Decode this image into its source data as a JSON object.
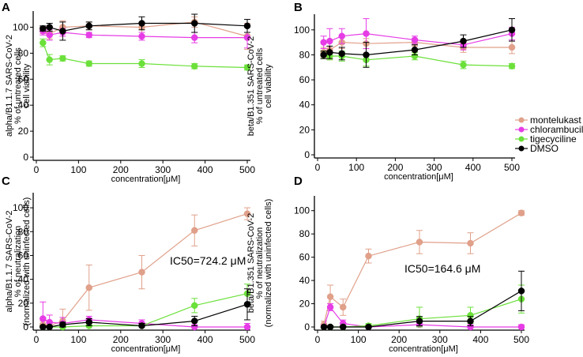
{
  "colors": {
    "montelukast": "#e0a08a",
    "chlorambucil": "#e63ce6",
    "tigecyciline": "#6be03a",
    "DMSO": "#000000"
  },
  "legend": {
    "placement": "right-middle",
    "entries": [
      "montelukast",
      "chlorambucil",
      "tigecyciline",
      "DMSO"
    ]
  },
  "chart_data": [
    {
      "panel": "A",
      "type": "line",
      "title": "",
      "xlabel": "concentration[μM]",
      "ylabel_lines": [
        "alpha/B1.1.7 SARS-CoV-2",
        "% of untreated cells",
        "cell viability"
      ],
      "xlim": [
        0,
        500
      ],
      "ylim": [
        0,
        110
      ],
      "xticks": [
        0,
        100,
        200,
        300,
        400,
        500
      ],
      "yticks": [
        0,
        20,
        40,
        60,
        80,
        100
      ],
      "annotation": "",
      "series": [
        {
          "name": "montelukast",
          "x": [
            15.6,
            31.25,
            62.5,
            125,
            250,
            375,
            500
          ],
          "y": [
            98,
            95,
            100,
            101,
            100,
            104,
            93
          ],
          "err": [
            3,
            4,
            5,
            3,
            4,
            4,
            10
          ]
        },
        {
          "name": "chlorambucil",
          "x": [
            15.6,
            31.25,
            62.5,
            125,
            250,
            375,
            500
          ],
          "y": [
            97,
            94,
            96,
            94,
            93,
            92,
            92
          ],
          "err": [
            3,
            4,
            3,
            2,
            3,
            4,
            8
          ]
        },
        {
          "name": "tigecyciline",
          "x": [
            15.6,
            31.25,
            62.5,
            125,
            250,
            375,
            500
          ],
          "y": [
            88,
            75,
            76,
            72,
            72,
            70,
            69
          ],
          "err": [
            3,
            4,
            2,
            2,
            3,
            2,
            2
          ]
        },
        {
          "name": "DMSO",
          "x": [
            15.6,
            31.25,
            62.5,
            125,
            250,
            375,
            500
          ],
          "y": [
            99,
            100,
            97,
            101,
            103,
            103,
            101
          ],
          "err": [
            2,
            3,
            7,
            3,
            5,
            7,
            5
          ]
        }
      ]
    },
    {
      "panel": "B",
      "type": "line",
      "title": "",
      "xlabel": "concentration[μM]",
      "ylabel_lines": [
        "beta/B1.351 SARS-CoV-2",
        "% of untreated cells",
        "cell viability"
      ],
      "xlim": [
        0,
        500
      ],
      "ylim": [
        0,
        110
      ],
      "xticks": [
        0,
        100,
        200,
        300,
        400,
        500
      ],
      "yticks": [
        0,
        20,
        40,
        60,
        80,
        100
      ],
      "annotation": "",
      "series": [
        {
          "name": "montelukast",
          "x": [
            15.6,
            31.25,
            62.5,
            125,
            250,
            375,
            500
          ],
          "y": [
            82,
            84,
            90,
            89,
            90,
            86,
            86
          ],
          "err": [
            4,
            8,
            5,
            4,
            3,
            4,
            5
          ]
        },
        {
          "name": "chlorambucil",
          "x": [
            15.6,
            31.25,
            62.5,
            125,
            250,
            375,
            500
          ],
          "y": [
            90,
            91,
            95,
            97,
            92,
            88,
            97
          ],
          "err": [
            5,
            10,
            6,
            12,
            3,
            4,
            5
          ]
        },
        {
          "name": "tigecyciline",
          "x": [
            15.6,
            31.25,
            62.5,
            125,
            250,
            375,
            500
          ],
          "y": [
            80,
            79,
            79,
            76,
            79,
            72,
            71
          ],
          "err": [
            3,
            3,
            4,
            5,
            3,
            3,
            2
          ]
        },
        {
          "name": "DMSO",
          "x": [
            15.6,
            31.25,
            62.5,
            125,
            250,
            375,
            500
          ],
          "y": [
            80,
            82,
            81,
            80,
            84,
            91,
            100
          ],
          "err": [
            3,
            5,
            5,
            10,
            4,
            5,
            9
          ]
        }
      ]
    },
    {
      "panel": "C",
      "type": "line",
      "title": "",
      "xlabel": "concentration[μM]",
      "ylabel_lines": [
        "alpha/B1.1.7 SARS-CoV-2",
        "% of neutralization",
        "(normalized with uninfected cells)"
      ],
      "xlim": [
        0,
        500
      ],
      "ylim": [
        0,
        110
      ],
      "xticks": [
        0,
        100,
        200,
        300,
        400,
        500
      ],
      "yticks": [
        0,
        20,
        40,
        60,
        80,
        100
      ],
      "annotation": "IC50=724.2 μM",
      "series": [
        {
          "name": "montelukast",
          "x": [
            15.6,
            31.25,
            62.5,
            125,
            250,
            375,
            500
          ],
          "y": [
            2,
            1,
            5,
            33,
            46,
            81,
            95
          ],
          "err": [
            3,
            3,
            10,
            19,
            14,
            13,
            5
          ]
        },
        {
          "name": "chlorambucil",
          "x": [
            15.6,
            31.25,
            62.5,
            125,
            250,
            375,
            500
          ],
          "y": [
            7,
            4,
            3,
            6,
            3,
            0,
            0
          ],
          "err": [
            14,
            6,
            5,
            3,
            3,
            2,
            3
          ]
        },
        {
          "name": "tigecyciline",
          "x": [
            15.6,
            31.25,
            62.5,
            125,
            250,
            375,
            500
          ],
          "y": [
            0,
            0,
            0,
            1,
            1,
            18,
            28
          ],
          "err": [
            1,
            1,
            2,
            4,
            2,
            6,
            8
          ]
        },
        {
          "name": "DMSO",
          "x": [
            15.6,
            31.25,
            62.5,
            125,
            250,
            375,
            500
          ],
          "y": [
            0,
            0,
            2,
            4,
            1,
            5,
            19
          ],
          "err": [
            1,
            1,
            2,
            3,
            2,
            4,
            13
          ]
        }
      ]
    },
    {
      "panel": "D",
      "type": "line",
      "title": "",
      "xlabel": "concentration[μM]",
      "ylabel_lines": [
        "beta/B1.351 SARS-CoV-2",
        "% of neutralization",
        "(normalized with uninfected cells)"
      ],
      "xlim": [
        0,
        500
      ],
      "ylim": [
        0,
        110
      ],
      "xticks": [
        0,
        100,
        200,
        300,
        400,
        500
      ],
      "yticks": [
        0,
        20,
        40,
        60,
        80,
        100
      ],
      "annotation": "IC50=164.6 μM",
      "series": [
        {
          "name": "montelukast",
          "x": [
            15.6,
            31.25,
            62.5,
            125,
            250,
            375,
            500
          ],
          "y": [
            2,
            26,
            17,
            61,
            73,
            72,
            98
          ],
          "err": [
            3,
            10,
            7,
            6,
            10,
            9,
            2
          ]
        },
        {
          "name": "chlorambucil",
          "x": [
            15.6,
            31.25,
            62.5,
            125,
            250,
            375,
            500
          ],
          "y": [
            0,
            17,
            3,
            0,
            2,
            0,
            0
          ],
          "err": [
            2,
            3,
            3,
            1,
            2,
            2,
            2
          ]
        },
        {
          "name": "tigecyciline",
          "x": [
            15.6,
            31.25,
            62.5,
            125,
            250,
            375,
            500
          ],
          "y": [
            0,
            0,
            0,
            1,
            7,
            10,
            24
          ],
          "err": [
            1,
            1,
            1,
            2,
            10,
            7,
            12
          ]
        },
        {
          "name": "DMSO",
          "x": [
            15.6,
            31.25,
            62.5,
            125,
            250,
            375,
            500
          ],
          "y": [
            0,
            0,
            0,
            0,
            5,
            5,
            31
          ],
          "err": [
            1,
            1,
            1,
            1,
            4,
            4,
            17
          ]
        }
      ]
    }
  ]
}
